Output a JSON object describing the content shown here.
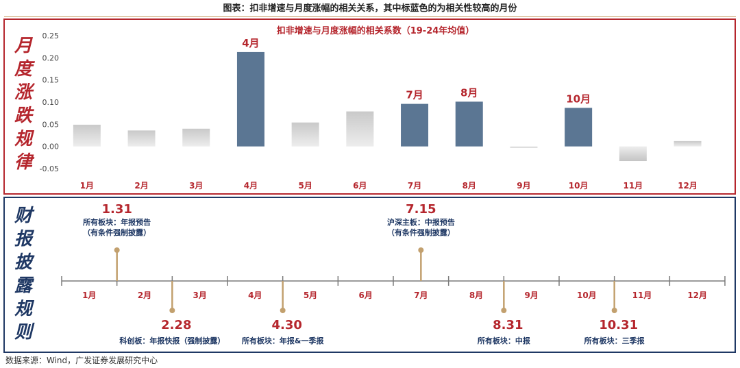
{
  "figure_title": "图表：扣非增速与月度涨幅的相关关系，其中标蓝色的为相关性较高的月份",
  "top_side_label": [
    "月",
    "度",
    "涨",
    "跌",
    "规",
    "律"
  ],
  "bottom_side_label": [
    "财",
    "报",
    "披",
    "露",
    "规",
    "则"
  ],
  "source": "数据来源：Wind，广发证券发展研究中心",
  "colors": {
    "highlight": "#5b7693",
    "normal": "#c6c6c6",
    "red": "#b5262d",
    "navy": "#1f3864",
    "timeline": "#c2a06e"
  },
  "chart_data": {
    "type": "bar",
    "title": "扣非增速与月度涨幅的相关系数（19-24年均值）",
    "categories": [
      "1月",
      "2月",
      "3月",
      "4月",
      "5月",
      "6月",
      "7月",
      "8月",
      "9月",
      "10月",
      "11月",
      "12月"
    ],
    "values": [
      0.049,
      0.036,
      0.04,
      0.213,
      0.054,
      0.079,
      0.096,
      0.101,
      -0.003,
      0.087,
      -0.033,
      0.012
    ],
    "highlighted": [
      "4月",
      "7月",
      "8月",
      "10月"
    ],
    "yticks": [
      "0.25",
      "0.20",
      "0.15",
      "0.10",
      "0.05",
      "0.00",
      "-0.05"
    ],
    "ylim": [
      -0.05,
      0.25
    ],
    "grid": false
  },
  "timeline": {
    "months": [
      "1月",
      "2月",
      "3月",
      "4月",
      "5月",
      "6月",
      "7月",
      "8月",
      "9月",
      "10月",
      "11月",
      "12月"
    ],
    "events": [
      {
        "date": "1.31",
        "after_month": 1,
        "side": "above",
        "lines": [
          "所有板块：年报预告",
          "（有条件强制披露）"
        ]
      },
      {
        "date": "7.15",
        "after_month": 6.5,
        "side": "above",
        "lines": [
          "沪深主板：中报预告",
          "（有条件强制披露）"
        ]
      },
      {
        "date": "2.28",
        "after_month": 2,
        "side": "below",
        "lines": [
          "科创板：年报快报（强制披露）"
        ]
      },
      {
        "date": "4.30",
        "after_month": 4,
        "side": "below",
        "lines": [
          "所有板块：年报&一季报"
        ]
      },
      {
        "date": "8.31",
        "after_month": 8,
        "side": "below",
        "lines": [
          "所有板块：中报"
        ]
      },
      {
        "date": "10.31",
        "after_month": 10,
        "side": "below",
        "lines": [
          "所有板块：三季报"
        ]
      }
    ]
  }
}
